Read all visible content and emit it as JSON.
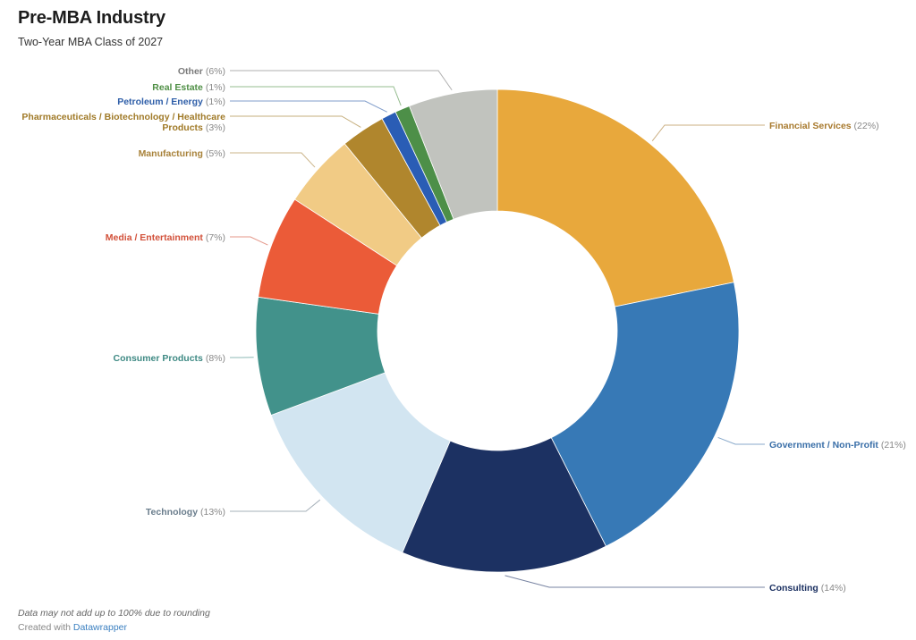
{
  "header": {
    "title": "Pre-MBA Industry",
    "subtitle": "Two-Year MBA Class of 2027"
  },
  "footer": {
    "notes": "Data may not add up to 100% due to rounding",
    "created_prefix": "Created with",
    "created_link": "Datawrapper"
  },
  "chart_data": {
    "type": "pie",
    "variant": "donut",
    "title": "Pre-MBA Industry",
    "subtitle": "Two-Year MBA Class of 2027",
    "unit": "%",
    "slices": [
      {
        "label": "Financial Services",
        "value": 22,
        "display": "(22%)",
        "color": "#e8a83c",
        "label_color": "#a87a2e",
        "side": "right"
      },
      {
        "label": "Government / Non-Profit",
        "value": 21,
        "display": "(21%)",
        "color": "#3779b6",
        "label_color": "#3a6fa8",
        "side": "right"
      },
      {
        "label": "Consulting",
        "value": 14,
        "display": "(14%)",
        "color": "#1c3162",
        "label_color": "#1c3162",
        "side": "right"
      },
      {
        "label": "Technology",
        "value": 13,
        "display": "(13%)",
        "color": "#d2e5f1",
        "label_color": "#6a7d8c",
        "side": "left"
      },
      {
        "label": "Consumer Products",
        "value": 8,
        "display": "(8%)",
        "color": "#42928b",
        "label_color": "#3f8a84",
        "side": "left"
      },
      {
        "label": "Media / Entertainment",
        "value": 7,
        "display": "(7%)",
        "color": "#eb5b38",
        "label_color": "#d2513a",
        "side": "left"
      },
      {
        "label": "Manufacturing",
        "value": 5,
        "display": "(5%)",
        "color": "#f1cb85",
        "label_color": "#a8823a",
        "side": "left"
      },
      {
        "label": "Pharmaceuticals / Biotechnology / Healthcare Products",
        "label_lines": [
          "Pharmaceuticals / Biotechnology / Healthcare",
          "Products"
        ],
        "value": 3,
        "display": "(3%)",
        "color": "#b0862d",
        "label_color": "#a07a28",
        "side": "left"
      },
      {
        "label": "Petroleum / Energy",
        "value": 1,
        "display": "(1%)",
        "color": "#2a5db5",
        "label_color": "#2e5ea8",
        "side": "left"
      },
      {
        "label": "Real Estate",
        "value": 1,
        "display": "(1%)",
        "color": "#4d8f48",
        "label_color": "#4f8f45",
        "side": "left"
      },
      {
        "label": "Other",
        "value": 6,
        "display": "(6%)",
        "color": "#c1c3be",
        "label_color": "#7a7a7a",
        "side": "left"
      }
    ]
  }
}
